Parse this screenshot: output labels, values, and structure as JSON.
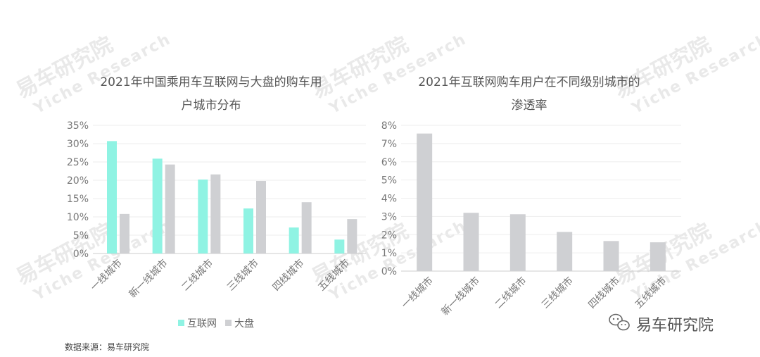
{
  "colors": {
    "internet": "#8ff3e3",
    "overall": "#cfd0d3",
    "grid": "#eeeeee",
    "axis": "#cccccc"
  },
  "watermark": {
    "text": "易车研究院",
    "sub": "Yiche Research"
  },
  "brand": {
    "icon": "wechat-icon",
    "name": "易车研究院"
  },
  "source": "数据来源：易车研究院",
  "chart_data": [
    {
      "type": "bar",
      "title_line1": "2021年中国乘用车互联网与大盘的购车用",
      "title_line2": "户城市分布",
      "categories": [
        "一线城市",
        "新一线城市",
        "二线城市",
        "三线城市",
        "四线城市",
        "五线城市"
      ],
      "y_ticks": [
        "0%",
        "5%",
        "10%",
        "15%",
        "20%",
        "25%",
        "30%",
        "35%"
      ],
      "ylim": [
        0,
        35
      ],
      "series": [
        {
          "name": "互联网",
          "color": "#8ff3e3",
          "values": [
            30.7,
            25.9,
            20.2,
            12.3,
            7.1,
            3.8
          ]
        },
        {
          "name": "大盘",
          "color": "#cfd0d3",
          "values": [
            10.8,
            24.3,
            21.6,
            19.8,
            14.0,
            9.4
          ]
        }
      ],
      "legend_position": "bottom",
      "grid": true
    },
    {
      "type": "bar",
      "title_line1": "2021年互联网购车用户在不同级别城市的",
      "title_line2": "渗透率",
      "categories": [
        "一线城市",
        "新一线城市",
        "二线城市",
        "三线城市",
        "四线城市",
        "五线城市"
      ],
      "y_ticks": [
        "0%",
        "1%",
        "2%",
        "3%",
        "4%",
        "5%",
        "6%",
        "7%",
        "8%"
      ],
      "ylim": [
        0,
        8
      ],
      "series": [
        {
          "color": "#cfd0d3",
          "values": [
            7.55,
            3.2,
            3.12,
            2.15,
            1.65,
            1.58
          ]
        }
      ],
      "grid": true
    }
  ]
}
